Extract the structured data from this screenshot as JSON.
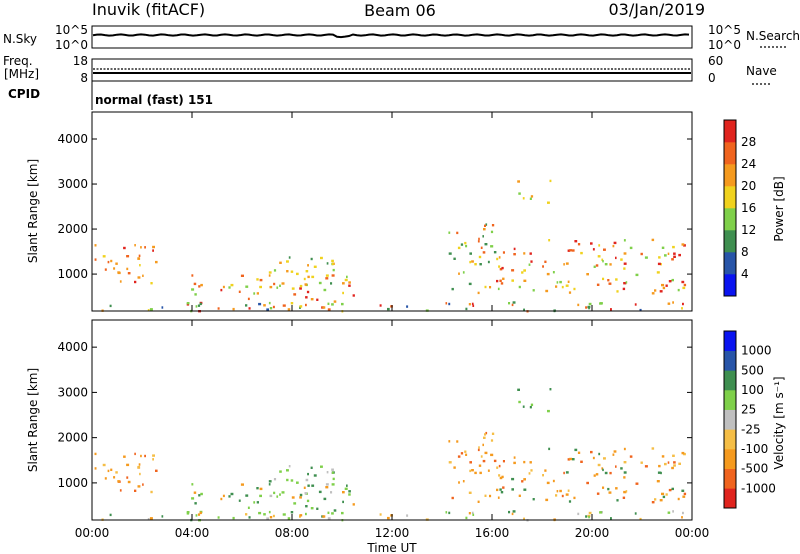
{
  "header": {
    "station": "Inuvik (fitACF)",
    "beam": "Beam 06",
    "date": "03/Jan/2019"
  },
  "noise_panel": {
    "left_label": "N.Sky",
    "left_ticks": [
      "10^5",
      "10^0"
    ],
    "right_ticks": [
      "10^5",
      "10^0"
    ],
    "right_label": "N.Search"
  },
  "freq_panel": {
    "left_label": "Freq.",
    "left_unit": "[MHz]",
    "left_ticks": [
      "18",
      "8"
    ],
    "right_ticks": [
      "60",
      "0"
    ],
    "right_label": "Nave",
    "cpid_label": "CPID",
    "cpid_text": "normal (fast) 151"
  },
  "colors": {
    "power_scale": [
      "#0a14f0",
      "#2855a8",
      "#3f8f50",
      "#7fd04a",
      "#f0d21e",
      "#f59a1e",
      "#f0641e",
      "#e0241e"
    ],
    "velocity_scale": [
      "#e0241e",
      "#f0641e",
      "#f59a1e",
      "#f5be46",
      "#c0c0c0",
      "#7fd04a",
      "#3f8f50",
      "#2855a8",
      "#0a14f0"
    ]
  },
  "chart_data": [
    {
      "type": "heatmap",
      "panel": "power",
      "ylabel": "Slant Range [km]",
      "yticks": [
        "1000",
        "2000",
        "3000",
        "4000"
      ],
      "ylim": [
        180,
        4600
      ],
      "colorbar": {
        "label": "Power [dB]",
        "ticks": [
          "4",
          "8",
          "12",
          "16",
          "20",
          "24",
          "28"
        ]
      }
    },
    {
      "type": "heatmap",
      "panel": "velocity",
      "ylabel": "Slant Range [km]",
      "yticks": [
        "1000",
        "2000",
        "3000",
        "4000"
      ],
      "ylim": [
        180,
        4600
      ],
      "xlabel": "Time UT",
      "xticks": [
        "00:00",
        "04:00",
        "08:00",
        "12:00",
        "16:00",
        "20:00",
        "00:00"
      ],
      "xlim": [
        "00:00",
        "24:00"
      ],
      "colorbar": {
        "label": "Velocity [m s⁻¹]",
        "ticks": [
          "1000",
          "500",
          "100",
          "25",
          "-25",
          "-100",
          "-500",
          "-1000"
        ]
      }
    }
  ]
}
